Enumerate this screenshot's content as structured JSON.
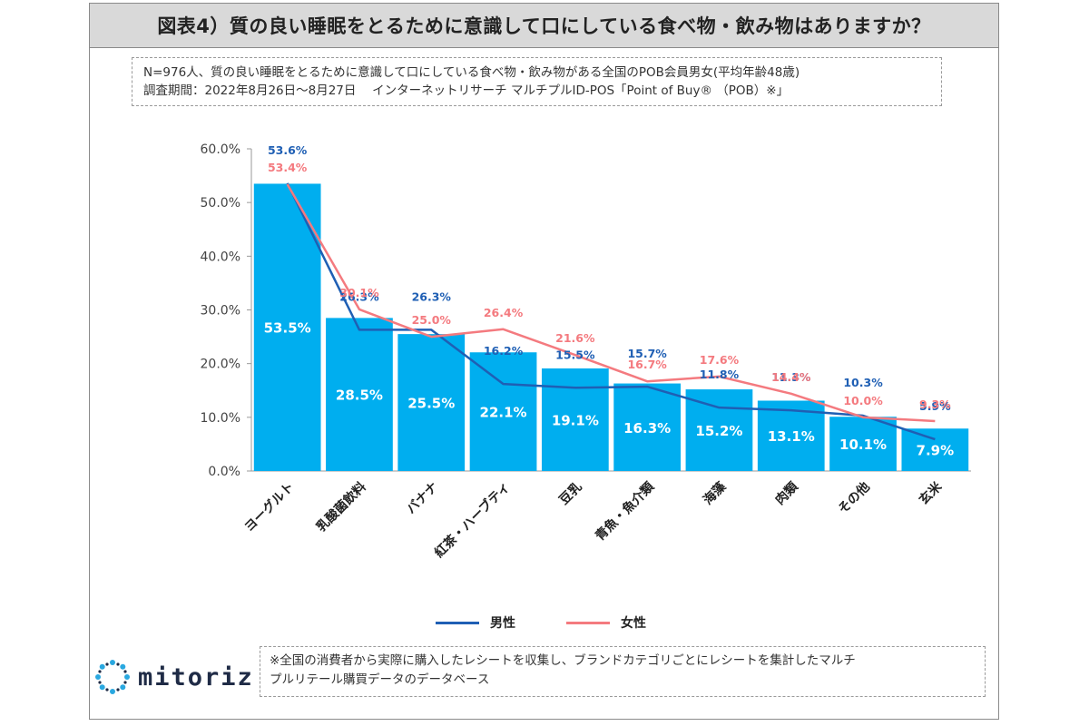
{
  "title": "図表4）質の良い睡眠をとるために意識して口にしている食べ物・飲み物はありますか？",
  "source_lines": [
    "N=976人、質の良い睡眠をとるために意識して口にしている食べ物・飲み物がある全国のPOB会員男女(平均年齢48歳)",
    "調査期間：2022年8月26日～8月27日　 インターネットリサーチ マルチプルID-POS「Point of Buy® （POB）※」"
  ],
  "note_lines": [
    "※全国の消費者から実際に購入したレシートを収集し、ブランドカテゴリごとにレシートを集計したマルチ",
    "プルリテール購買データのデータベース"
  ],
  "logo": {
    "text": "mitoriz",
    "icon": "sparkle-ring-icon"
  },
  "colors": {
    "bar": "#00aeef",
    "male": "#1f5fb4",
    "female": "#f47a7f",
    "bar_label": "#ffffff"
  },
  "chart_data": {
    "type": "bar",
    "categories": [
      "ヨーグルト",
      "乳酸菌飲料",
      "バナナ",
      "紅茶・ハーブティ",
      "豆乳",
      "青魚・魚介類",
      "海藻",
      "肉類",
      "その他",
      "玄米"
    ],
    "bar_values": [
      53.5,
      28.5,
      25.5,
      22.1,
      19.1,
      16.3,
      15.2,
      13.1,
      10.1,
      7.9
    ],
    "bar_labels": [
      "53.5%",
      "28.5%",
      "25.5%",
      "22.1%",
      "19.1%",
      "16.3%",
      "15.2%",
      "13.1%",
      "10.1%",
      "7.9%"
    ],
    "series": [
      {
        "name": "男性",
        "values": [
          53.6,
          26.3,
          26.3,
          16.2,
          15.5,
          15.7,
          11.8,
          11.3,
          10.3,
          5.9
        ],
        "labels": [
          "53.6%",
          "26.3%",
          "26.3%",
          "16.2%",
          "15.5%",
          "15.7%",
          "11.8%",
          "11.3%",
          "10.3%",
          "5.9%"
        ]
      },
      {
        "name": "女性",
        "values": [
          53.4,
          30.1,
          25.0,
          26.4,
          21.6,
          16.7,
          17.6,
          14.4,
          10.0,
          9.3
        ],
        "labels": [
          "53.4%",
          "30.1%",
          "25.0%",
          "26.4%",
          "21.6%",
          "16.7%",
          "17.6%",
          "14.4%",
          "10.0%",
          "9.3%"
        ]
      }
    ],
    "yticks": [
      "0.0%",
      "10.0%",
      "20.0%",
      "30.0%",
      "40.0%",
      "50.0%",
      "60.0%"
    ],
    "ylim": [
      0,
      60
    ],
    "grid": false,
    "legend_position": "bottom-center"
  }
}
